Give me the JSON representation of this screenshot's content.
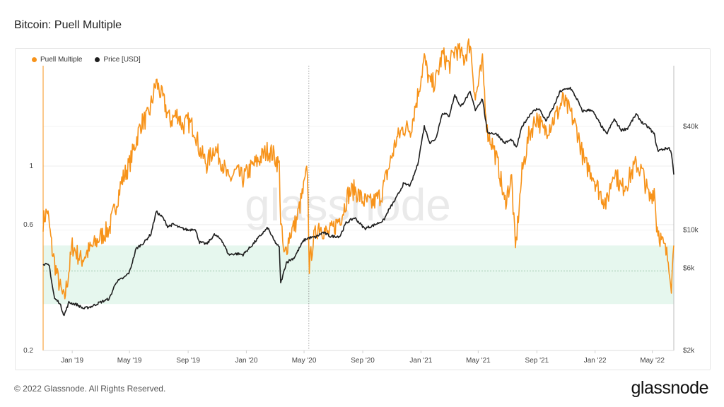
{
  "header": {
    "title": "Bitcoin: Puell Multiple"
  },
  "footer": {
    "copyright": "© 2022 Glassnode. All Rights Reserved.",
    "brand": "glassnode"
  },
  "watermark": "glassnode",
  "colors": {
    "puell": "#f7931a",
    "price": "#1e1e1e",
    "band": "#e6f7ee",
    "grid": "#ececec"
  },
  "chart_data": {
    "type": "line",
    "title": "Bitcoin: Puell Multiple",
    "legend_position": "top-left",
    "grid": true,
    "x_ticks": [
      "Jan '19",
      "May '19",
      "Sep '19",
      "Jan '20",
      "May '20",
      "Sep '20",
      "Jan '21",
      "May '21",
      "Sep '21",
      "Jan '22",
      "May '22"
    ],
    "x_range": [
      "2018-11-01",
      "2022-06-15"
    ],
    "left_axis": {
      "scale": "log",
      "range": [
        0.2,
        2.4
      ],
      "ticks": [
        "0.2",
        "0.6",
        "1"
      ],
      "tick_values": [
        0.2,
        0.6,
        1
      ]
    },
    "right_axis": {
      "scale": "log",
      "range": [
        2000,
        90000
      ],
      "ticks": [
        "$2k",
        "$6k",
        "$10k",
        "$40k"
      ],
      "tick_values": [
        2000,
        6000,
        10000,
        40000
      ]
    },
    "band": {
      "label": "",
      "range": [
        0.3,
        0.5
      ]
    },
    "reference_line": 0.4,
    "vertical_marker": "2020-05-11",
    "series": [
      {
        "name": "Puell Multiple",
        "axis": "left",
        "color": "#f7931a",
        "points": [
          [
            "2018-11-01",
            0.62
          ],
          [
            "2018-11-10",
            0.68
          ],
          [
            "2018-11-20",
            0.48
          ],
          [
            "2018-12-01",
            0.38
          ],
          [
            "2018-12-10",
            0.33
          ],
          [
            "2018-12-15",
            0.31
          ],
          [
            "2018-12-25",
            0.4
          ],
          [
            "2019-01-01",
            0.5
          ],
          [
            "2019-01-10",
            0.47
          ],
          [
            "2019-01-20",
            0.44
          ],
          [
            "2019-02-01",
            0.47
          ],
          [
            "2019-02-15",
            0.5
          ],
          [
            "2019-03-01",
            0.54
          ],
          [
            "2019-03-20",
            0.58
          ],
          [
            "2019-04-01",
            0.7
          ],
          [
            "2019-04-15",
            0.88
          ],
          [
            "2019-05-01",
            1.02
          ],
          [
            "2019-05-15",
            1.25
          ],
          [
            "2019-05-25",
            1.45
          ],
          [
            "2019-06-10",
            1.55
          ],
          [
            "2019-06-26",
            2.08
          ],
          [
            "2019-07-10",
            1.8
          ],
          [
            "2019-07-25",
            1.48
          ],
          [
            "2019-08-10",
            1.58
          ],
          [
            "2019-08-20",
            1.42
          ],
          [
            "2019-09-01",
            1.47
          ],
          [
            "2019-09-15",
            1.38
          ],
          [
            "2019-09-25",
            1.15
          ],
          [
            "2019-10-10",
            1.02
          ],
          [
            "2019-10-26",
            1.18
          ],
          [
            "2019-11-10",
            1.05
          ],
          [
            "2019-11-25",
            0.88
          ],
          [
            "2019-12-10",
            0.95
          ],
          [
            "2019-12-25",
            0.9
          ],
          [
            "2020-01-10",
            0.98
          ],
          [
            "2020-02-01",
            1.08
          ],
          [
            "2020-02-15",
            1.15
          ],
          [
            "2020-02-28",
            1.1
          ],
          [
            "2020-03-10",
            1.0
          ],
          [
            "2020-03-13",
            0.62
          ],
          [
            "2020-03-20",
            0.45
          ],
          [
            "2020-04-01",
            0.55
          ],
          [
            "2020-04-15",
            0.62
          ],
          [
            "2020-04-30",
            0.82
          ],
          [
            "2020-05-08",
            0.97
          ],
          [
            "2020-05-12",
            0.42
          ],
          [
            "2020-05-20",
            0.52
          ],
          [
            "2020-06-01",
            0.6
          ],
          [
            "2020-06-20",
            0.55
          ],
          [
            "2020-07-01",
            0.58
          ],
          [
            "2020-07-20",
            0.66
          ],
          [
            "2020-08-01",
            0.78
          ],
          [
            "2020-08-15",
            0.82
          ],
          [
            "2020-09-01",
            0.74
          ],
          [
            "2020-09-20",
            0.72
          ],
          [
            "2020-10-10",
            0.78
          ],
          [
            "2020-10-25",
            0.98
          ],
          [
            "2020-11-10",
            1.25
          ],
          [
            "2020-11-25",
            1.4
          ],
          [
            "2020-12-10",
            1.38
          ],
          [
            "2020-12-25",
            1.85
          ],
          [
            "2021-01-08",
            2.55
          ],
          [
            "2021-01-20",
            2.05
          ],
          [
            "2021-02-01",
            2.1
          ],
          [
            "2021-02-15",
            2.65
          ],
          [
            "2021-03-01",
            2.4
          ],
          [
            "2021-03-15",
            2.8
          ],
          [
            "2021-04-01",
            2.55
          ],
          [
            "2021-04-14",
            2.95
          ],
          [
            "2021-04-25",
            1.8
          ],
          [
            "2021-05-10",
            2.45
          ],
          [
            "2021-05-20",
            1.35
          ],
          [
            "2021-06-01",
            1.2
          ],
          [
            "2021-06-15",
            0.95
          ],
          [
            "2021-06-25",
            0.72
          ],
          [
            "2021-07-10",
            0.9
          ],
          [
            "2021-07-18",
            0.48
          ],
          [
            "2021-08-01",
            0.95
          ],
          [
            "2021-08-15",
            1.3
          ],
          [
            "2021-09-01",
            1.55
          ],
          [
            "2021-09-15",
            1.35
          ],
          [
            "2021-10-01",
            1.45
          ],
          [
            "2021-10-15",
            1.6
          ],
          [
            "2021-10-25",
            1.78
          ],
          [
            "2021-11-10",
            1.6
          ],
          [
            "2021-11-25",
            1.35
          ],
          [
            "2021-12-10",
            1.02
          ],
          [
            "2021-12-25",
            0.95
          ],
          [
            "2022-01-10",
            0.8
          ],
          [
            "2022-01-25",
            0.72
          ],
          [
            "2022-02-10",
            0.98
          ],
          [
            "2022-02-25",
            0.82
          ],
          [
            "2022-03-10",
            0.88
          ],
          [
            "2022-03-28",
            1.02
          ],
          [
            "2022-04-10",
            0.95
          ],
          [
            "2022-04-25",
            0.75
          ],
          [
            "2022-05-05",
            0.82
          ],
          [
            "2022-05-10",
            0.6
          ],
          [
            "2022-05-20",
            0.52
          ],
          [
            "2022-05-28",
            0.48
          ],
          [
            "2022-06-05",
            0.43
          ],
          [
            "2022-06-10",
            0.36
          ],
          [
            "2022-06-15",
            0.5
          ]
        ]
      },
      {
        "name": "Price [USD]",
        "axis": "right",
        "color": "#1e1e1e",
        "points": [
          [
            "2018-11-01",
            6400
          ],
          [
            "2018-11-14",
            6200
          ],
          [
            "2018-11-20",
            4800
          ],
          [
            "2018-11-25",
            4000
          ],
          [
            "2018-12-05",
            3800
          ],
          [
            "2018-12-15",
            3200
          ],
          [
            "2018-12-25",
            3800
          ],
          [
            "2019-01-10",
            3700
          ],
          [
            "2019-01-25",
            3500
          ],
          [
            "2019-02-10",
            3600
          ],
          [
            "2019-02-28",
            3800
          ],
          [
            "2019-03-20",
            4000
          ],
          [
            "2019-04-03",
            5000
          ],
          [
            "2019-04-20",
            5300
          ],
          [
            "2019-05-01",
            5700
          ],
          [
            "2019-05-15",
            7800
          ],
          [
            "2019-06-01",
            8500
          ],
          [
            "2019-06-15",
            9500
          ],
          [
            "2019-06-26",
            12800
          ],
          [
            "2019-07-10",
            11800
          ],
          [
            "2019-07-20",
            10500
          ],
          [
            "2019-08-01",
            10800
          ],
          [
            "2019-08-15",
            10300
          ],
          [
            "2019-09-01",
            10000
          ],
          [
            "2019-09-15",
            10200
          ],
          [
            "2019-09-25",
            8500
          ],
          [
            "2019-10-10",
            8300
          ],
          [
            "2019-10-26",
            9400
          ],
          [
            "2019-11-10",
            8800
          ],
          [
            "2019-11-25",
            7200
          ],
          [
            "2019-12-10",
            7300
          ],
          [
            "2019-12-25",
            7200
          ],
          [
            "2020-01-10",
            8000
          ],
          [
            "2020-02-01",
            9400
          ],
          [
            "2020-02-15",
            10300
          ],
          [
            "2020-02-28",
            8700
          ],
          [
            "2020-03-10",
            7900
          ],
          [
            "2020-03-13",
            4900
          ],
          [
            "2020-03-25",
            6500
          ],
          [
            "2020-04-10",
            6900
          ],
          [
            "2020-04-30",
            8700
          ],
          [
            "2020-05-10",
            9000
          ],
          [
            "2020-05-25",
            9100
          ],
          [
            "2020-06-10",
            9700
          ],
          [
            "2020-06-25",
            9200
          ],
          [
            "2020-07-15",
            9200
          ],
          [
            "2020-07-28",
            11000
          ],
          [
            "2020-08-15",
            11800
          ],
          [
            "2020-09-05",
            10200
          ],
          [
            "2020-09-25",
            10700
          ],
          [
            "2020-10-15",
            11400
          ],
          [
            "2020-10-25",
            13000
          ],
          [
            "2020-11-10",
            15300
          ],
          [
            "2020-11-25",
            18500
          ],
          [
            "2020-12-10",
            18200
          ],
          [
            "2020-12-25",
            24000
          ],
          [
            "2021-01-08",
            40000
          ],
          [
            "2021-01-20",
            32000
          ],
          [
            "2021-02-01",
            34000
          ],
          [
            "2021-02-15",
            48000
          ],
          [
            "2021-03-01",
            46000
          ],
          [
            "2021-03-13",
            61000
          ],
          [
            "2021-03-25",
            52000
          ],
          [
            "2021-04-14",
            63000
          ],
          [
            "2021-04-25",
            50000
          ],
          [
            "2021-05-10",
            58000
          ],
          [
            "2021-05-20",
            37000
          ],
          [
            "2021-06-10",
            36000
          ],
          [
            "2021-06-25",
            32000
          ],
          [
            "2021-07-10",
            33500
          ],
          [
            "2021-07-20",
            30000
          ],
          [
            "2021-08-01",
            40000
          ],
          [
            "2021-08-20",
            48000
          ],
          [
            "2021-09-05",
            51000
          ],
          [
            "2021-09-20",
            43000
          ],
          [
            "2021-10-05",
            51000
          ],
          [
            "2021-10-20",
            64000
          ],
          [
            "2021-11-10",
            67000
          ],
          [
            "2021-11-25",
            57000
          ],
          [
            "2021-12-05",
            49000
          ],
          [
            "2021-12-25",
            50000
          ],
          [
            "2022-01-10",
            42000
          ],
          [
            "2022-01-25",
            36000
          ],
          [
            "2022-02-10",
            44000
          ],
          [
            "2022-02-25",
            38000
          ],
          [
            "2022-03-10",
            39000
          ],
          [
            "2022-03-28",
            47000
          ],
          [
            "2022-04-10",
            42000
          ],
          [
            "2022-04-25",
            39000
          ],
          [
            "2022-05-05",
            36000
          ],
          [
            "2022-05-12",
            29000
          ],
          [
            "2022-05-25",
            29500
          ],
          [
            "2022-06-05",
            30000
          ],
          [
            "2022-06-10",
            28000
          ],
          [
            "2022-06-15",
            21000
          ]
        ]
      }
    ]
  }
}
